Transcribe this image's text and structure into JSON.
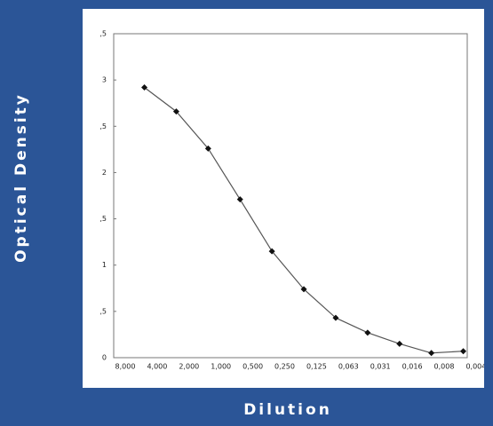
{
  "chart_data": {
    "type": "line",
    "y_axis_label": "Optical Density",
    "x_axis_label": "Dilution",
    "categories": [
      "8,000",
      "4,000",
      "2,000",
      "1,000",
      "0,500",
      "0,250",
      "0,125",
      "0,063",
      "0,031",
      "0,016",
      "0,008",
      "0,004"
    ],
    "series": [
      {
        "name": null,
        "color": "#555555",
        "values": [
          2.92,
          2.66,
          2.26,
          1.71,
          1.15,
          0.74,
          0.43,
          0.27,
          0.15,
          0.05,
          0.07,
          null
        ]
      }
    ],
    "ylim": [
      0,
      3.5
    ],
    "yticks": [
      0,
      {
        "value": 0.5,
        "label": ",5"
      },
      1,
      {
        "value": 1.5,
        "label": ",5"
      },
      2,
      {
        "value": 2.5,
        "label": ",5"
      },
      3,
      {
        "value": 3.5,
        "label": ",5"
      }
    ],
    "grid": false
  }
}
